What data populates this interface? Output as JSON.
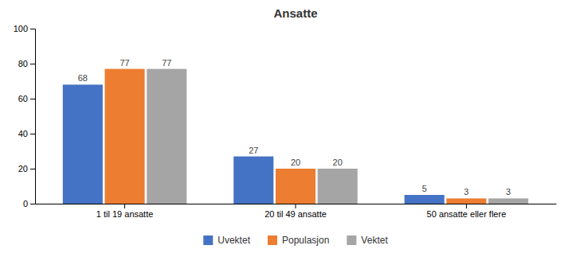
{
  "chart_data": {
    "type": "bar",
    "title": "Ansatte",
    "categories": [
      "1 til 19 ansatte",
      "20 til 49 ansatte",
      "50 ansatte eller flere"
    ],
    "series": [
      {
        "name": "Uvektet",
        "values": [
          68,
          27,
          5
        ],
        "color": "#4472C4"
      },
      {
        "name": "Populasjon",
        "values": [
          77,
          20,
          3
        ],
        "color": "#ED7D31"
      },
      {
        "name": "Vektet",
        "values": [
          77,
          20,
          3
        ],
        "color": "#A5A5A5"
      }
    ],
    "ylim": [
      0,
      100
    ],
    "yticks": [
      0,
      20,
      40,
      60,
      80,
      100
    ],
    "grid": false,
    "data_labels": true,
    "legend": "bottom"
  }
}
